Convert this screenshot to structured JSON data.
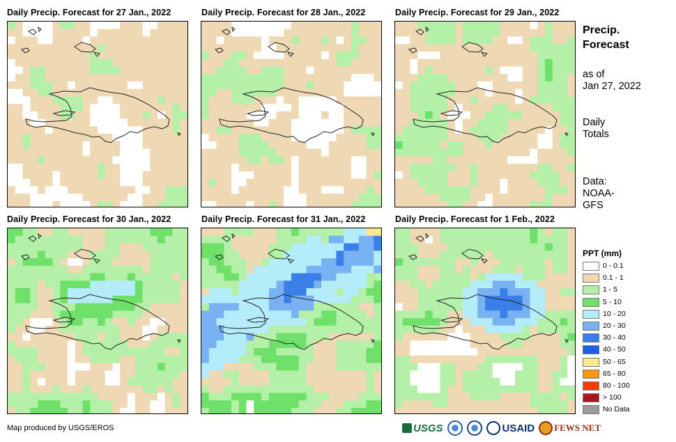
{
  "panels": [
    {
      "title": "Daily Precip. Forecast for 27 Jan., 2022"
    },
    {
      "title": "Daily Precip. Forecast for 28 Jan., 2022"
    },
    {
      "title": "Daily Precip. Forecast for 29 Jan., 2022"
    },
    {
      "title": "Daily Precip. Forecast for 30 Jan., 2022"
    },
    {
      "title": "Daily Precip. Forecast for 31 Jan., 2022"
    },
    {
      "title": "Daily Precip. Forecast for 1 Feb., 2022"
    }
  ],
  "sidebar": {
    "heading_line1": "Precip.",
    "heading_line2": "Forecast",
    "asof_line1": "as of",
    "asof_line2": "Jan 27, 2022",
    "totals_line1": "Daily",
    "totals_line2": "Totals",
    "data_line1": "Data:",
    "data_line2": "NOAA-",
    "data_line3": "GFS"
  },
  "legend": {
    "title": "PPT (mm)",
    "items": [
      {
        "label": "0 - 0.1",
        "color": "#ffffff"
      },
      {
        "label": "0.1 - 1",
        "color": "#efd9b4"
      },
      {
        "label": "1 - 5",
        "color": "#b4f0a8"
      },
      {
        "label": "5 - 10",
        "color": "#6fe06a"
      },
      {
        "label": "10 - 20",
        "color": "#b4ecfa"
      },
      {
        "label": "20 - 30",
        "color": "#78b2f2"
      },
      {
        "label": "30 - 40",
        "color": "#3a7fe8"
      },
      {
        "label": "40 - 50",
        "color": "#1e5ee0"
      },
      {
        "label": "50 - 65",
        "color": "#fde98a"
      },
      {
        "label": "65 - 80",
        "color": "#f79a0a"
      },
      {
        "label": "80 - 100",
        "color": "#fa3a0a"
      },
      {
        "label": "> 100",
        "color": "#a8191d"
      },
      {
        "label": "No Data",
        "color": "#9b9b9b"
      }
    ]
  },
  "footer": {
    "credit": "Map produced by USGS/EROS",
    "logo_usgs": "USGS",
    "logo_usaid": "USAID",
    "logo_fews": "FEWS NET"
  }
}
